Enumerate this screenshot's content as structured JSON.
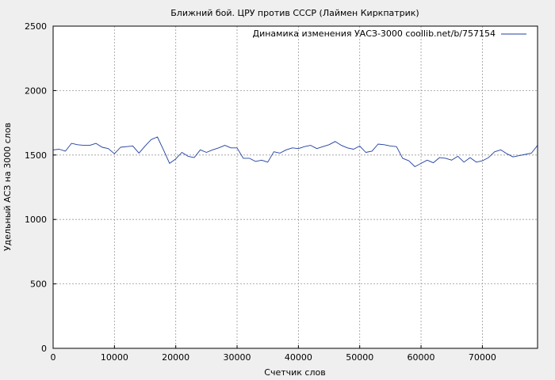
{
  "chart_data": {
    "type": "line",
    "title": "Ближний бой. ЦРУ против СССР (Лаймен Киркпатрик)",
    "xlabel": "Счетчик слов",
    "ylabel": "Удельный АСЗ на 3000 слов",
    "xlim": [
      0,
      79000
    ],
    "ylim": [
      0,
      2500
    ],
    "xticks": [
      0,
      10000,
      20000,
      30000,
      40000,
      50000,
      60000,
      70000
    ],
    "yticks": [
      0,
      500,
      1000,
      1500,
      2000,
      2500
    ],
    "grid": true,
    "legend_position": "top-right",
    "colors": {
      "background": "#efefef",
      "plot_background": "#ffffff",
      "line": "#1f3f9f",
      "grid": "#999999"
    },
    "series": [
      {
        "name": "Динамика изменения УАСЗ-3000 coollib.net/b/757154",
        "x": [
          0,
          1000,
          2000,
          3000,
          4000,
          5000,
          6000,
          7000,
          8000,
          9000,
          10000,
          11000,
          12000,
          13000,
          14000,
          15000,
          16000,
          17000,
          18000,
          19000,
          20000,
          21000,
          22000,
          23000,
          24000,
          25000,
          26000,
          27000,
          28000,
          29000,
          30000,
          31000,
          32000,
          33000,
          34000,
          35000,
          36000,
          37000,
          38000,
          39000,
          40000,
          41000,
          42000,
          43000,
          44000,
          45000,
          46000,
          47000,
          48000,
          49000,
          50000,
          51000,
          52000,
          53000,
          54000,
          55000,
          56000,
          57000,
          58000,
          59000,
          60000,
          61000,
          62000,
          63000,
          64000,
          65000,
          66000,
          67000,
          68000,
          69000,
          70000,
          71000,
          72000,
          73000,
          74000,
          75000,
          76000,
          77000,
          78000,
          79000
        ],
        "y": [
          1540,
          1545,
          1530,
          1590,
          1580,
          1575,
          1575,
          1590,
          1560,
          1550,
          1510,
          1560,
          1565,
          1570,
          1515,
          1570,
          1620,
          1640,
          1540,
          1435,
          1470,
          1520,
          1490,
          1480,
          1540,
          1520,
          1540,
          1555,
          1575,
          1555,
          1555,
          1475,
          1475,
          1450,
          1460,
          1445,
          1525,
          1515,
          1540,
          1555,
          1550,
          1565,
          1575,
          1550,
          1565,
          1580,
          1605,
          1575,
          1555,
          1545,
          1570,
          1520,
          1530,
          1585,
          1580,
          1570,
          1565,
          1475,
          1455,
          1410,
          1435,
          1460,
          1440,
          1480,
          1475,
          1460,
          1490,
          1445,
          1480,
          1445,
          1455,
          1480,
          1525,
          1540,
          1510,
          1485,
          1495,
          1505,
          1515,
          1575
        ]
      }
    ]
  }
}
